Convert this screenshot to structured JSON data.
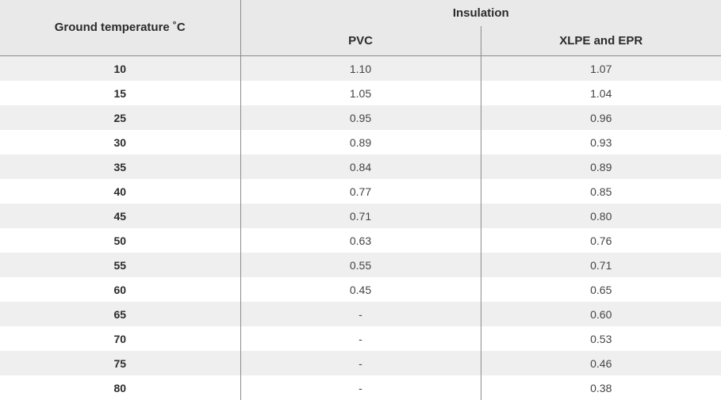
{
  "table": {
    "header": {
      "temperature": "Ground temperature ˚C",
      "insulation": "Insulation",
      "pvc": "PVC",
      "xlpe": "XLPE and EPR"
    },
    "rows": [
      {
        "temp": "10",
        "pvc": "1.10",
        "xlpe": "1.07"
      },
      {
        "temp": "15",
        "pvc": "1.05",
        "xlpe": "1.04"
      },
      {
        "temp": "25",
        "pvc": "0.95",
        "xlpe": "0.96"
      },
      {
        "temp": "30",
        "pvc": "0.89",
        "xlpe": "0.93"
      },
      {
        "temp": "35",
        "pvc": "0.84",
        "xlpe": "0.89"
      },
      {
        "temp": "40",
        "pvc": "0.77",
        "xlpe": "0.85"
      },
      {
        "temp": "45",
        "pvc": "0.71",
        "xlpe": "0.80"
      },
      {
        "temp": "50",
        "pvc": "0.63",
        "xlpe": "0.76"
      },
      {
        "temp": "55",
        "pvc": "0.55",
        "xlpe": "0.71"
      },
      {
        "temp": "60",
        "pvc": "0.45",
        "xlpe": "0.65"
      },
      {
        "temp": "65",
        "pvc": "-",
        "xlpe": "0.60"
      },
      {
        "temp": "70",
        "pvc": "-",
        "xlpe": "0.53"
      },
      {
        "temp": "75",
        "pvc": "-",
        "xlpe": "0.46"
      },
      {
        "temp": "80",
        "pvc": "-",
        "xlpe": "0.38"
      }
    ]
  },
  "colors": {
    "header_bg": "#e9e9e9",
    "stripe_bg": "#efefef",
    "divider": "#8c8c8c"
  }
}
